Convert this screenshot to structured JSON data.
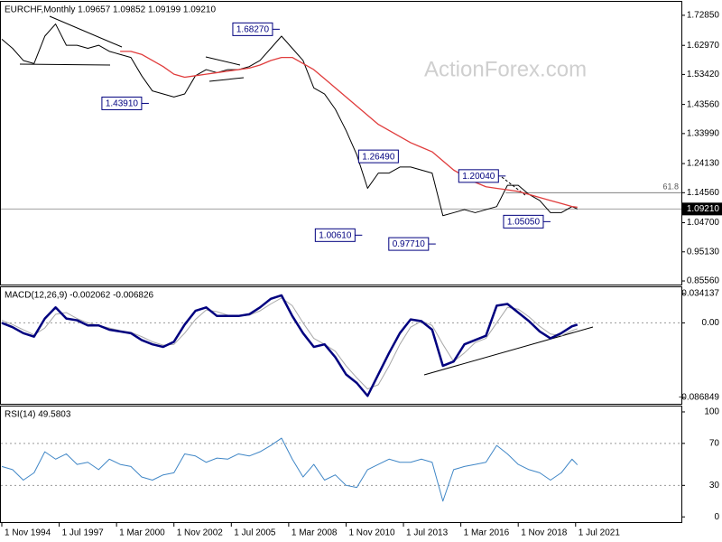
{
  "chart_data": [
    {
      "type": "line",
      "title": "EURCHF,Monthly 1.09657 1.09852 1.09199 1.09210",
      "watermark": "ActionForex.com",
      "xlim": [
        "1994-10-01",
        "2026-06-01"
      ],
      "ylim": [
        0.8438,
        1.7758
      ],
      "yticks": [
        {
          "value": 1.7285,
          "label": "1.72850"
        },
        {
          "value": 1.6297,
          "label": "1.62970"
        },
        {
          "value": 1.5342,
          "label": "1.53420"
        },
        {
          "value": 1.4356,
          "label": "1.43560"
        },
        {
          "value": 1.3399,
          "label": "1.33990"
        },
        {
          "value": 1.2413,
          "label": "1.24130"
        },
        {
          "value": 1.1456,
          "label": "1.14560"
        },
        {
          "value": 1.047,
          "label": "1.04700"
        },
        {
          "value": 0.9513,
          "label": "0.95130"
        },
        {
          "value": 0.8556,
          "label": "0.85560"
        }
      ],
      "last": {
        "value": 1.0921,
        "label": "1.09210"
      },
      "levels": [
        {
          "value": 1.1456,
          "label": "61.8",
          "x": "2018-04-01"
        }
      ],
      "annotations": [
        {
          "value": 1.6827,
          "label": "1.68270",
          "x": "2007-10-01"
        },
        {
          "value": 1.4391,
          "label": "1.43910",
          "x": "2001-09-01"
        },
        {
          "value": 1.2649,
          "label": "1.26490",
          "x": "2011-06-01"
        },
        {
          "value": 1.0061,
          "label": "1.00610",
          "x": "2011-08-01"
        },
        {
          "value": 0.9771,
          "label": "0.97710",
          "x": "2015-01-01"
        },
        {
          "value": 1.2004,
          "label": "1.20040",
          "x": "2018-04-01"
        },
        {
          "value": 1.0505,
          "label": "1.05050",
          "x": "2020-05-01"
        }
      ],
      "x": [
        "1994-11-01",
        "1995-05-01",
        "1995-11-01",
        "1996-05-01",
        "1996-11-01",
        "1997-05-01",
        "1997-11-01",
        "1998-05-01",
        "1998-11-01",
        "1999-05-01",
        "1999-11-01",
        "2000-05-01",
        "2000-11-01",
        "2001-05-01",
        "2001-11-01",
        "2002-05-01",
        "2002-11-01",
        "2003-05-01",
        "2003-11-01",
        "2004-05-01",
        "2004-11-01",
        "2005-05-01",
        "2005-11-01",
        "2006-05-01",
        "2006-11-01",
        "2007-05-01",
        "2007-11-01",
        "2008-05-01",
        "2008-11-01",
        "2009-05-01",
        "2009-11-01",
        "2010-05-01",
        "2010-11-01",
        "2011-05-01",
        "2011-11-01",
        "2012-05-01",
        "2012-11-01",
        "2013-05-01",
        "2013-11-01",
        "2014-05-01",
        "2014-11-01",
        "2015-05-01",
        "2015-11-01",
        "2016-05-01",
        "2016-11-01",
        "2017-05-01",
        "2017-11-01",
        "2018-05-01",
        "2018-11-01",
        "2019-05-01",
        "2019-11-01",
        "2020-05-01",
        "2020-11-01",
        "2021-05-01",
        "2021-08-01"
      ],
      "series": [
        {
          "color": "#000000",
          "width": 1,
          "values": [
            1.65,
            1.62,
            1.58,
            1.57,
            1.66,
            1.7,
            1.63,
            1.63,
            1.62,
            1.63,
            1.61,
            1.6,
            1.59,
            1.53,
            1.48,
            1.47,
            1.46,
            1.47,
            1.53,
            1.55,
            1.54,
            1.55,
            1.55,
            1.56,
            1.58,
            1.62,
            1.66,
            1.62,
            1.58,
            1.49,
            1.47,
            1.42,
            1.35,
            1.27,
            1.16,
            1.21,
            1.21,
            1.23,
            1.23,
            1.22,
            1.21,
            1.07,
            1.08,
            1.09,
            1.08,
            1.09,
            1.1,
            1.17,
            1.17,
            1.14,
            1.12,
            1.08,
            1.08,
            1.1,
            1.0921
          ]
        },
        {
          "color": "#e03c3c",
          "width": 1.3,
          "values": [
            null,
            null,
            null,
            null,
            null,
            null,
            null,
            null,
            null,
            null,
            null,
            1.61,
            1.61,
            1.6,
            1.58,
            1.56,
            1.535,
            1.525,
            1.53,
            1.535,
            1.54,
            1.545,
            1.55,
            1.555,
            1.565,
            1.58,
            1.59,
            1.59,
            1.57,
            1.55,
            1.52,
            1.49,
            1.46,
            1.43,
            1.4,
            1.37,
            1.35,
            1.33,
            1.31,
            1.295,
            1.28,
            1.25,
            1.22,
            1.2,
            1.18,
            1.165,
            1.16,
            1.155,
            1.15,
            1.14,
            1.13,
            1.12,
            1.11,
            1.1,
            1.098
          ]
        }
      ]
    },
    {
      "type": "line",
      "title": "MACD(12,26,9) -0.002062 -0.006826",
      "xlim": [
        "1994-10-01",
        "2026-06-01"
      ],
      "ylim": [
        -0.0942,
        0.0425
      ],
      "yticks": [
        0.034137,
        {
          "value": 0,
          "label": "0.00"
        },
        -0.086849
      ],
      "levels": [
        0
      ],
      "x": [
        "1994-11-01",
        "1995-05-01",
        "1995-11-01",
        "1996-05-01",
        "1996-11-01",
        "1997-05-01",
        "1997-11-01",
        "1998-05-01",
        "1998-11-01",
        "1999-05-01",
        "1999-11-01",
        "2000-05-01",
        "2000-11-01",
        "2001-05-01",
        "2001-11-01",
        "2002-05-01",
        "2002-11-01",
        "2003-05-01",
        "2003-11-01",
        "2004-05-01",
        "2004-11-01",
        "2005-05-01",
        "2005-11-01",
        "2006-05-01",
        "2006-11-01",
        "2007-05-01",
        "2007-11-01",
        "2008-05-01",
        "2008-11-01",
        "2009-05-01",
        "2009-11-01",
        "2010-05-01",
        "2010-11-01",
        "2011-05-01",
        "2011-11-01",
        "2012-05-01",
        "2012-11-01",
        "2013-05-01",
        "2013-11-01",
        "2014-05-01",
        "2014-11-01",
        "2015-05-01",
        "2015-11-01",
        "2016-05-01",
        "2016-11-01",
        "2017-05-01",
        "2017-11-01",
        "2018-05-01",
        "2018-11-01",
        "2019-05-01",
        "2019-11-01",
        "2020-05-01",
        "2020-11-01",
        "2021-05-01",
        "2021-08-01"
      ],
      "series": [
        {
          "color": "#a8a8a8",
          "width": 1,
          "values": [
            0.003,
            -0.002,
            -0.008,
            -0.014,
            -0.006,
            0.01,
            0.012,
            0.005,
            0.0,
            -0.003,
            -0.006,
            -0.009,
            -0.011,
            -0.016,
            -0.022,
            -0.026,
            -0.025,
            -0.012,
            0.004,
            0.015,
            0.013,
            0.009,
            0.008,
            0.009,
            0.014,
            0.022,
            0.029,
            0.02,
            0.0,
            -0.018,
            -0.025,
            -0.033,
            -0.05,
            -0.064,
            -0.077,
            -0.072,
            -0.05,
            -0.025,
            -0.005,
            0.002,
            -0.003,
            -0.025,
            -0.045,
            -0.035,
            -0.023,
            -0.018,
            0.0,
            0.018,
            0.016,
            0.007,
            -0.004,
            -0.013,
            -0.015,
            -0.009,
            -0.006826
          ]
        },
        {
          "color": "#00007f",
          "width": 2.5,
          "values": [
            0.0,
            -0.005,
            -0.012,
            -0.016,
            0.005,
            0.018,
            0.005,
            0.003,
            -0.003,
            -0.003,
            -0.008,
            -0.01,
            -0.012,
            -0.02,
            -0.025,
            -0.028,
            -0.022,
            -0.002,
            0.014,
            0.018,
            0.008,
            0.008,
            0.008,
            0.01,
            0.018,
            0.028,
            0.032,
            0.008,
            -0.012,
            -0.028,
            -0.025,
            -0.04,
            -0.06,
            -0.07,
            -0.085,
            -0.06,
            -0.035,
            -0.012,
            0.004,
            0.002,
            -0.008,
            -0.05,
            -0.045,
            -0.025,
            -0.02,
            -0.015,
            0.02,
            0.022,
            0.012,
            0.002,
            -0.01,
            -0.018,
            -0.012,
            -0.004,
            -0.002062
          ]
        }
      ]
    },
    {
      "type": "line",
      "title": "RSI(14) 49.5803",
      "xlim": [
        "1994-10-01",
        "2026-06-01"
      ],
      "ylim": [
        -5,
        106
      ],
      "yticks": [
        100,
        70,
        30,
        0
      ],
      "levels": [
        70,
        30
      ],
      "xticks": [
        {
          "value": "1994-11-01",
          "label": "1 Nov 1994"
        },
        {
          "value": "1997-07-01",
          "label": "1 Jul 1997"
        },
        {
          "value": "2000-03-01",
          "label": "1 Mar 2000"
        },
        {
          "value": "2002-11-01",
          "label": "1 Nov 2002"
        },
        {
          "value": "2005-07-01",
          "label": "1 Jul 2005"
        },
        {
          "value": "2008-03-01",
          "label": "1 Mar 2008"
        },
        {
          "value": "2010-11-01",
          "label": "1 Nov 2010"
        },
        {
          "value": "2013-07-01",
          "label": "1 Jul 2013"
        },
        {
          "value": "2016-03-01",
          "label": "1 Mar 2016"
        },
        {
          "value": "2018-11-01",
          "label": "1 Nov 2018"
        },
        {
          "value": "2021-07-01",
          "label": "1 Jul 2021"
        }
      ],
      "x": [
        "1994-11-01",
        "1995-05-01",
        "1995-11-01",
        "1996-05-01",
        "1996-11-01",
        "1997-05-01",
        "1997-11-01",
        "1998-05-01",
        "1998-11-01",
        "1999-05-01",
        "1999-11-01",
        "2000-05-01",
        "2000-11-01",
        "2001-05-01",
        "2001-11-01",
        "2002-05-01",
        "2002-11-01",
        "2003-05-01",
        "2003-11-01",
        "2004-05-01",
        "2004-11-01",
        "2005-05-01",
        "2005-11-01",
        "2006-05-01",
        "2006-11-01",
        "2007-05-01",
        "2007-11-01",
        "2008-05-01",
        "2008-11-01",
        "2009-05-01",
        "2009-11-01",
        "2010-05-01",
        "2010-11-01",
        "2011-05-01",
        "2011-11-01",
        "2012-05-01",
        "2012-11-01",
        "2013-05-01",
        "2013-11-01",
        "2014-05-01",
        "2014-11-01",
        "2015-05-01",
        "2015-11-01",
        "2016-05-01",
        "2016-11-01",
        "2017-05-01",
        "2017-11-01",
        "2018-05-01",
        "2018-11-01",
        "2019-05-01",
        "2019-11-01",
        "2020-05-01",
        "2020-11-01",
        "2021-05-01",
        "2021-08-01"
      ],
      "series": [
        {
          "color": "#3f86c6",
          "width": 1,
          "values": [
            48,
            45,
            35,
            42,
            62,
            55,
            60,
            50,
            52,
            45,
            55,
            50,
            48,
            38,
            35,
            40,
            42,
            60,
            58,
            52,
            56,
            55,
            60,
            58,
            62,
            68,
            75,
            55,
            38,
            50,
            35,
            40,
            30,
            28,
            45,
            50,
            55,
            52,
            52,
            55,
            52,
            15,
            45,
            48,
            50,
            52,
            68,
            60,
            50,
            45,
            42,
            35,
            42,
            55,
            49.5803
          ]
        }
      ]
    }
  ]
}
